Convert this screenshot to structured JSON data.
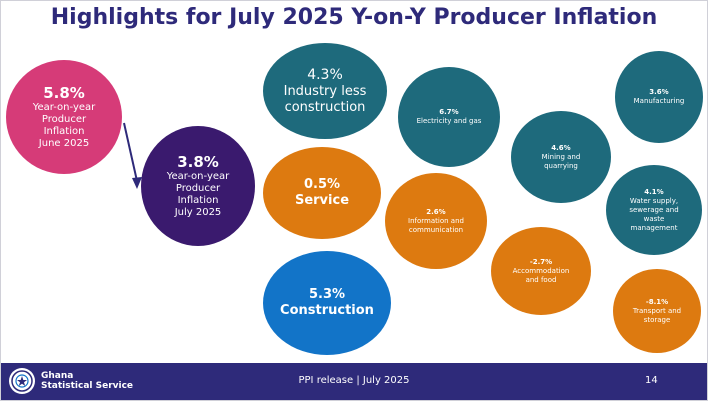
{
  "title": "Highlights for July 2025 Y-on-Y Producer Inflation",
  "overall_prev": {
    "value": "5.8%",
    "lines": [
      "Year-on-year",
      "Producer",
      "Inflation",
      "June 2025"
    ]
  },
  "overall_curr": {
    "value": "3.8%",
    "lines": [
      "Year-on-year",
      "Producer",
      "Inflation",
      "July 2025"
    ]
  },
  "sectors": {
    "industry_less_construction": {
      "value": "4.3%",
      "lines": [
        "Industry less",
        "construction"
      ]
    },
    "service": {
      "value": "0.5%",
      "lines": [
        "Service"
      ]
    },
    "construction": {
      "value": "5.3%",
      "lines": [
        "Construction"
      ]
    }
  },
  "subsectors": {
    "electricity_gas": {
      "value": "6.7%",
      "lines": [
        "Electricity and gas"
      ]
    },
    "information_communication": {
      "value": "2.6%",
      "lines": [
        "Information and",
        "communication"
      ]
    },
    "mining_quarrying": {
      "value": "4.6%",
      "lines": [
        "Mining and",
        "quarrying"
      ]
    },
    "accommodation_food": {
      "value": "-2.7%",
      "lines": [
        "Accommodation",
        "and food"
      ]
    },
    "manufacturing": {
      "value": "3.6%",
      "lines": [
        "Manufacturing"
      ]
    },
    "water_supply": {
      "value": "4.1%",
      "lines": [
        "Water supply,",
        "sewerage and",
        "waste",
        "management"
      ]
    },
    "transport_storage": {
      "value": "-8.1%",
      "lines": [
        "Transport and",
        "storage"
      ]
    }
  },
  "colors": {
    "title": "#2e2a7a",
    "prev": "#d63b78",
    "curr": "#3a1a6e",
    "industry": "#1e6a7c",
    "service": "#dd7a10",
    "construction": "#1274c8",
    "footer": "#2e2a7a"
  },
  "footer": {
    "org_line1": "Ghana",
    "org_line2": "Statistical Service",
    "release": "PPI release | July 2025",
    "page": "14"
  }
}
